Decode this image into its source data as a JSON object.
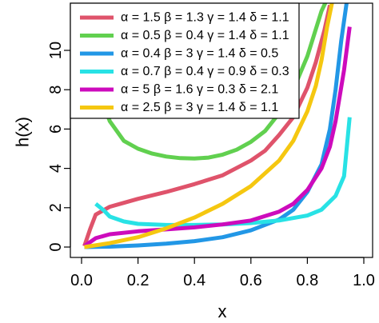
{
  "chart_data": {
    "type": "line",
    "title": "",
    "xlabel": "x",
    "ylabel": "h(x)",
    "xlim": [
      0,
      1
    ],
    "ylim": [
      0,
      12
    ],
    "x_ticks": [
      "0.0",
      "0.2",
      "0.4",
      "0.6",
      "0.8",
      "1.0"
    ],
    "y_ticks": [
      "0",
      "2",
      "4",
      "6",
      "8",
      "10"
    ],
    "grid": false,
    "legend_position": "top-left",
    "series": [
      {
        "name": "α = 1.5  β = 1.3  γ = 1.4  δ = 1.1",
        "color": "#DF536B",
        "points": [
          [
            0.01,
            0.05
          ],
          [
            0.03,
            0.9
          ],
          [
            0.05,
            1.65
          ],
          [
            0.1,
            2.05
          ],
          [
            0.15,
            2.25
          ],
          [
            0.2,
            2.45
          ],
          [
            0.3,
            2.8
          ],
          [
            0.4,
            3.2
          ],
          [
            0.5,
            3.65
          ],
          [
            0.6,
            4.4
          ],
          [
            0.65,
            4.9
          ],
          [
            0.7,
            5.7
          ],
          [
            0.75,
            6.6
          ],
          [
            0.8,
            8.1
          ],
          [
            0.83,
            9.4
          ],
          [
            0.86,
            11.0
          ],
          [
            0.88,
            12.3
          ]
        ]
      },
      {
        "name": "α = 0.5  β = 0.4  γ = 1.4  δ = 1.1",
        "color": "#61D04F",
        "points": [
          [
            0.05,
            8.7
          ],
          [
            0.07,
            7.6
          ],
          [
            0.1,
            6.4
          ],
          [
            0.15,
            5.4
          ],
          [
            0.2,
            5.0
          ],
          [
            0.25,
            4.75
          ],
          [
            0.3,
            4.6
          ],
          [
            0.35,
            4.52
          ],
          [
            0.4,
            4.5
          ],
          [
            0.45,
            4.55
          ],
          [
            0.5,
            4.7
          ],
          [
            0.55,
            4.95
          ],
          [
            0.6,
            5.35
          ],
          [
            0.65,
            5.9
          ],
          [
            0.7,
            6.8
          ],
          [
            0.75,
            8.0
          ],
          [
            0.8,
            9.7
          ],
          [
            0.85,
            12.0
          ],
          [
            0.87,
            12.6
          ]
        ]
      },
      {
        "name": "α = 0.4  β = 3  γ = 1.4  δ = 0.5",
        "color": "#2297E6",
        "points": [
          [
            0.01,
            0.0
          ],
          [
            0.1,
            0.02
          ],
          [
            0.2,
            0.08
          ],
          [
            0.3,
            0.17
          ],
          [
            0.4,
            0.3
          ],
          [
            0.5,
            0.5
          ],
          [
            0.6,
            0.85
          ],
          [
            0.7,
            1.4
          ],
          [
            0.75,
            1.9
          ],
          [
            0.8,
            2.8
          ],
          [
            0.85,
            4.2
          ],
          [
            0.88,
            6.0
          ],
          [
            0.9,
            8.0
          ],
          [
            0.92,
            10.5
          ],
          [
            0.94,
            12.5
          ]
        ]
      },
      {
        "name": "α = 0.7  β = 0.4  γ = 0.9  δ = 0.3",
        "color": "#28E2E5",
        "points": [
          [
            0.05,
            2.2
          ],
          [
            0.08,
            1.85
          ],
          [
            0.1,
            1.55
          ],
          [
            0.15,
            1.3
          ],
          [
            0.2,
            1.18
          ],
          [
            0.3,
            1.12
          ],
          [
            0.4,
            1.12
          ],
          [
            0.5,
            1.15
          ],
          [
            0.6,
            1.22
          ],
          [
            0.7,
            1.35
          ],
          [
            0.8,
            1.6
          ],
          [
            0.85,
            1.9
          ],
          [
            0.9,
            2.6
          ],
          [
            0.93,
            3.6
          ],
          [
            0.95,
            6.6
          ]
        ]
      },
      {
        "name": "α = 5  β = 1.6  γ = 0.3  δ = 2.1",
        "color": "#CD0BBC",
        "points": [
          [
            0.01,
            0.05
          ],
          [
            0.05,
            0.45
          ],
          [
            0.1,
            0.65
          ],
          [
            0.2,
            0.8
          ],
          [
            0.3,
            0.9
          ],
          [
            0.4,
            1.0
          ],
          [
            0.5,
            1.15
          ],
          [
            0.6,
            1.35
          ],
          [
            0.7,
            1.8
          ],
          [
            0.75,
            2.2
          ],
          [
            0.8,
            2.9
          ],
          [
            0.85,
            4.0
          ],
          [
            0.88,
            5.1
          ],
          [
            0.9,
            6.4
          ],
          [
            0.93,
            9.0
          ],
          [
            0.95,
            11.2
          ]
        ]
      },
      {
        "name": "α = 2.5  β = 3  γ = 1.4  δ = 1.1",
        "color": "#F5C710",
        "points": [
          [
            0.01,
            0.0
          ],
          [
            0.1,
            0.2
          ],
          [
            0.2,
            0.5
          ],
          [
            0.3,
            0.95
          ],
          [
            0.4,
            1.5
          ],
          [
            0.5,
            2.2
          ],
          [
            0.6,
            3.1
          ],
          [
            0.7,
            4.4
          ],
          [
            0.75,
            5.4
          ],
          [
            0.8,
            6.9
          ],
          [
            0.83,
            8.2
          ],
          [
            0.85,
            9.5
          ],
          [
            0.87,
            11.2
          ],
          [
            0.89,
            12.6
          ]
        ]
      }
    ]
  }
}
